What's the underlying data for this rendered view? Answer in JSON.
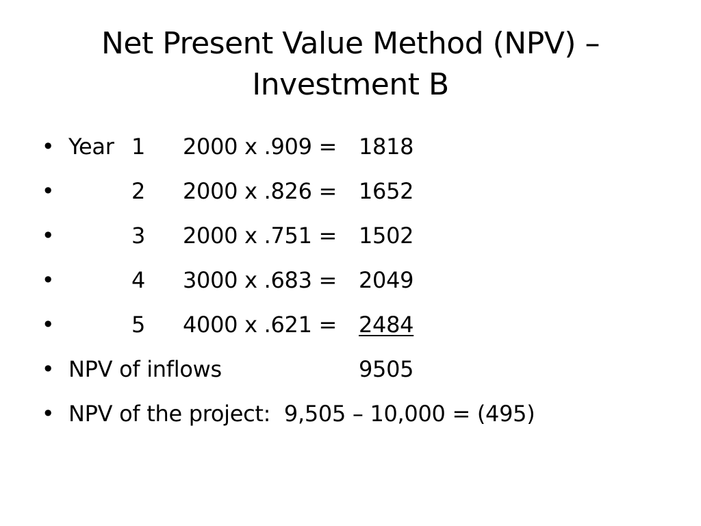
{
  "slide": {
    "title_line1": "Net Present Value Method (NPV) –",
    "title_line2": "Investment B",
    "bullet_glyph": "•",
    "years": [
      {
        "label": "Year",
        "year": "1",
        "expression": "2000 x .909 =",
        "result": "1818"
      },
      {
        "label": "",
        "year": "2",
        "expression": "2000 x .826 =",
        "result": "1652"
      },
      {
        "label": "",
        "year": "3",
        "expression": "2000 x .751 =",
        "result": "1502"
      },
      {
        "label": "",
        "year": "4",
        "expression": "3000 x .683 =",
        "result": "2049"
      },
      {
        "label": "",
        "year": "5",
        "expression": "4000 x .621 =",
        "result": "2484"
      }
    ],
    "inflows_label": "NPV of inflows",
    "inflows_value": "9505",
    "project_line": "NPV of the project:  9,505 – 10,000 = (495)"
  }
}
